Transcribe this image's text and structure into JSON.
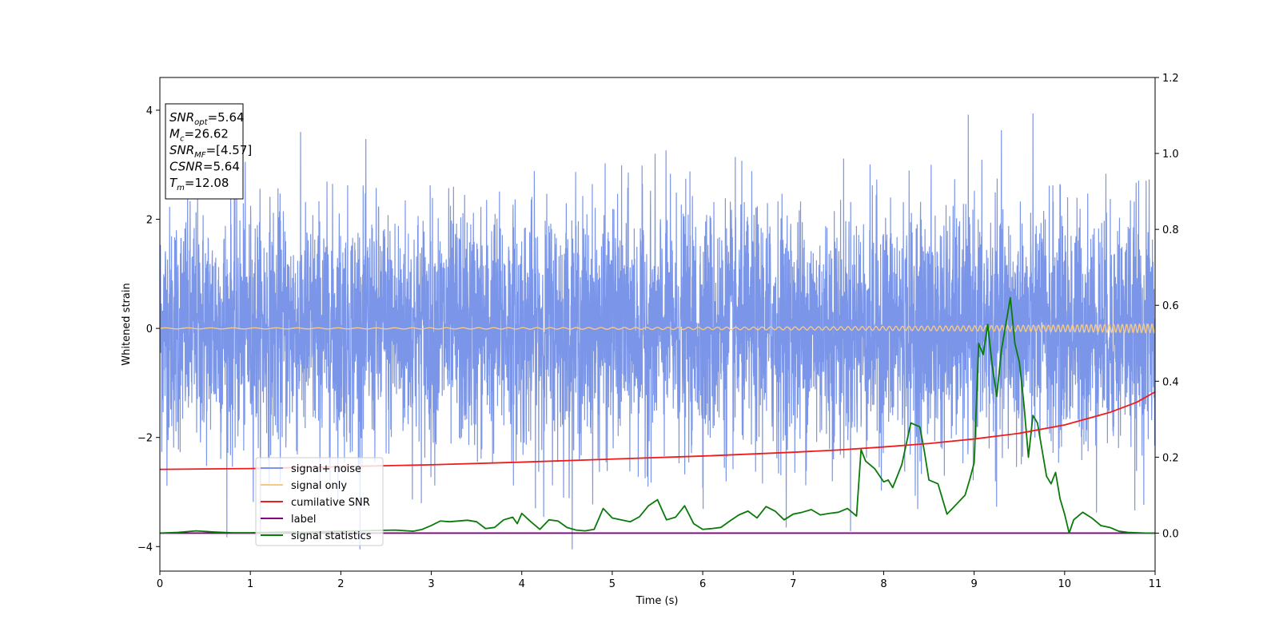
{
  "chart_data": {
    "type": "line",
    "xlabel": "Time (s)",
    "ylabel": "Whitened strain",
    "xlim": [
      0,
      11
    ],
    "ylim": [
      -4.45,
      4.6
    ],
    "y2lim": [
      -0.1,
      1.2
    ],
    "grid": false,
    "x_ticks": [
      "0",
      "1",
      "2",
      "3",
      "4",
      "5",
      "6",
      "7",
      "8",
      "9",
      "10",
      "11"
    ],
    "y_ticks": [
      "4",
      "2",
      "0",
      "−2",
      "−4"
    ],
    "y_tick_values": [
      4,
      2,
      0,
      -2,
      -4
    ],
    "y2_ticks": [
      "0.0",
      "0.2",
      "0.4",
      "0.6",
      "0.8",
      "1.0",
      "1.2"
    ],
    "y2_tick_values": [
      0.0,
      0.2,
      0.4,
      0.6,
      0.8,
      1.0,
      1.2
    ],
    "legend": {
      "placement": "lower-left",
      "entries": [
        "signal+ noise",
        "signal only",
        "cumilative SNR",
        "label",
        "signal statistics"
      ]
    },
    "annotation": {
      "lines": [
        {
          "base": "SNR",
          "sub": "opt",
          "rest": "=5.64"
        },
        {
          "base": "M",
          "sub": "c",
          "rest": "=26.62"
        },
        {
          "base": "SNR",
          "sub": "MF",
          "rest": "=[4.57]"
        },
        {
          "base": "CSNR",
          "sub": "",
          "rest": "=5.64"
        },
        {
          "base": "T",
          "sub": "m",
          "rest": "=12.08"
        }
      ]
    },
    "series": [
      {
        "name": "signal+ noise",
        "color": "#7b96e8",
        "axis": "left",
        "kind": "noise",
        "std": 1.1,
        "y_extent": [
          -4.05,
          4.2
        ]
      },
      {
        "name": "signal only",
        "color": "#f5c987",
        "axis": "left",
        "kind": "chirp",
        "amplitude_start": 0.01,
        "amplitude_end": 0.08
      },
      {
        "name": "cumilative SNR",
        "color": "#ee1c1c",
        "axis": "right",
        "x": [
          0,
          1,
          2,
          3,
          4,
          5,
          6,
          7,
          7.5,
          8,
          8.5,
          9,
          9.5,
          10,
          10.5,
          10.8,
          11
        ],
        "y": [
          0.168,
          0.17,
          0.175,
          0.18,
          0.187,
          0.195,
          0.203,
          0.213,
          0.219,
          0.227,
          0.236,
          0.248,
          0.263,
          0.285,
          0.318,
          0.345,
          0.372
        ]
      },
      {
        "name": "label",
        "color": "#800080",
        "axis": "right",
        "x": [
          0,
          11
        ],
        "y": [
          0,
          0
        ]
      },
      {
        "name": "signal statistics",
        "color": "#0a7a0a",
        "axis": "right",
        "x": [
          0,
          0.2,
          0.4,
          0.6,
          0.8,
          1.0,
          1.2,
          1.4,
          1.6,
          1.8,
          2.0,
          2.2,
          2.4,
          2.6,
          2.8,
          2.9,
          3.0,
          3.1,
          3.2,
          3.4,
          3.5,
          3.6,
          3.7,
          3.8,
          3.9,
          3.95,
          4.0,
          4.1,
          4.2,
          4.3,
          4.4,
          4.5,
          4.6,
          4.7,
          4.8,
          4.9,
          5.0,
          5.1,
          5.2,
          5.3,
          5.4,
          5.5,
          5.6,
          5.7,
          5.8,
          5.9,
          6.0,
          6.1,
          6.2,
          6.3,
          6.4,
          6.5,
          6.6,
          6.7,
          6.8,
          6.9,
          7.0,
          7.1,
          7.2,
          7.3,
          7.4,
          7.5,
          7.6,
          7.7,
          7.75,
          7.8,
          7.9,
          8.0,
          8.05,
          8.1,
          8.2,
          8.3,
          8.4,
          8.45,
          8.5,
          8.6,
          8.7,
          8.8,
          8.9,
          8.95,
          9.0,
          9.05,
          9.1,
          9.15,
          9.2,
          9.25,
          9.3,
          9.35,
          9.4,
          9.45,
          9.5,
          9.55,
          9.6,
          9.65,
          9.7,
          9.75,
          9.8,
          9.85,
          9.9,
          9.95,
          10.0,
          10.05,
          10.1,
          10.15,
          10.2,
          10.3,
          10.4,
          10.5,
          10.6,
          10.7,
          10.8,
          10.9,
          11.0
        ],
        "y": [
          0.0,
          0.002,
          0.006,
          0.003,
          0.001,
          0.001,
          0.002,
          0.003,
          0.002,
          0.004,
          0.005,
          0.006,
          0.007,
          0.008,
          0.005,
          0.01,
          0.02,
          0.032,
          0.03,
          0.034,
          0.03,
          0.012,
          0.015,
          0.035,
          0.042,
          0.025,
          0.052,
          0.03,
          0.01,
          0.035,
          0.032,
          0.015,
          0.008,
          0.006,
          0.01,
          0.065,
          0.04,
          0.035,
          0.03,
          0.043,
          0.072,
          0.088,
          0.035,
          0.042,
          0.072,
          0.025,
          0.01,
          0.012,
          0.015,
          0.032,
          0.048,
          0.058,
          0.04,
          0.07,
          0.058,
          0.035,
          0.05,
          0.055,
          0.062,
          0.048,
          0.052,
          0.055,
          0.065,
          0.045,
          0.22,
          0.19,
          0.17,
          0.135,
          0.14,
          0.12,
          0.18,
          0.29,
          0.28,
          0.215,
          0.14,
          0.13,
          0.05,
          0.075,
          0.1,
          0.14,
          0.185,
          0.5,
          0.47,
          0.55,
          0.44,
          0.36,
          0.48,
          0.55,
          0.62,
          0.5,
          0.45,
          0.34,
          0.2,
          0.31,
          0.29,
          0.22,
          0.15,
          0.13,
          0.16,
          0.09,
          0.05,
          0.0,
          0.035,
          0.045,
          0.055,
          0.04,
          0.02,
          0.015,
          0.005,
          0.002,
          0.001,
          0.0,
          0.0
        ]
      }
    ]
  }
}
